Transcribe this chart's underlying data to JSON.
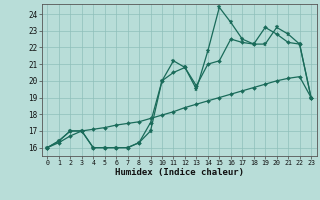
{
  "bg_color": "#b8ddd8",
  "grid_color": "#8fbfba",
  "line_color": "#1a6b5a",
  "xlim": [
    -0.5,
    23.5
  ],
  "ylim": [
    15.5,
    24.6
  ],
  "xticks": [
    0,
    1,
    2,
    3,
    4,
    5,
    6,
    7,
    8,
    9,
    10,
    11,
    12,
    13,
    14,
    15,
    16,
    17,
    18,
    19,
    20,
    21,
    22,
    23
  ],
  "yticks": [
    16,
    17,
    18,
    19,
    20,
    21,
    22,
    23,
    24
  ],
  "xlabel": "Humidex (Indice chaleur)",
  "line1_x": [
    0,
    1,
    2,
    3,
    4,
    5,
    6,
    7,
    8,
    9,
    10,
    11,
    12,
    13,
    14,
    15,
    16,
    17,
    18,
    19,
    20,
    21,
    22,
    23
  ],
  "line1_y": [
    16.0,
    16.4,
    17.0,
    17.0,
    16.0,
    16.0,
    16.0,
    16.0,
    16.3,
    17.0,
    20.0,
    21.2,
    20.8,
    19.5,
    21.8,
    24.4,
    23.5,
    22.5,
    22.2,
    22.2,
    23.2,
    22.8,
    22.2,
    19.0
  ],
  "line2_x": [
    0,
    1,
    2,
    3,
    4,
    5,
    6,
    7,
    8,
    9,
    10,
    11,
    12,
    13,
    14,
    15,
    16,
    17,
    18,
    19,
    20,
    21,
    22,
    23
  ],
  "line2_y": [
    16.0,
    16.4,
    17.0,
    17.0,
    16.0,
    16.0,
    16.0,
    16.0,
    16.3,
    17.5,
    20.0,
    20.5,
    20.8,
    19.7,
    21.0,
    21.2,
    22.5,
    22.3,
    22.2,
    23.2,
    22.8,
    22.3,
    22.2,
    19.0
  ],
  "line3_x": [
    0,
    1,
    2,
    3,
    4,
    5,
    6,
    7,
    8,
    9,
    10,
    11,
    12,
    13,
    14,
    15,
    16,
    17,
    18,
    19,
    20,
    21,
    22,
    23
  ],
  "line3_y": [
    16.0,
    16.3,
    16.7,
    17.0,
    17.1,
    17.2,
    17.35,
    17.45,
    17.55,
    17.75,
    17.95,
    18.15,
    18.4,
    18.6,
    18.8,
    19.0,
    19.2,
    19.4,
    19.6,
    19.8,
    20.0,
    20.15,
    20.25,
    19.0
  ]
}
